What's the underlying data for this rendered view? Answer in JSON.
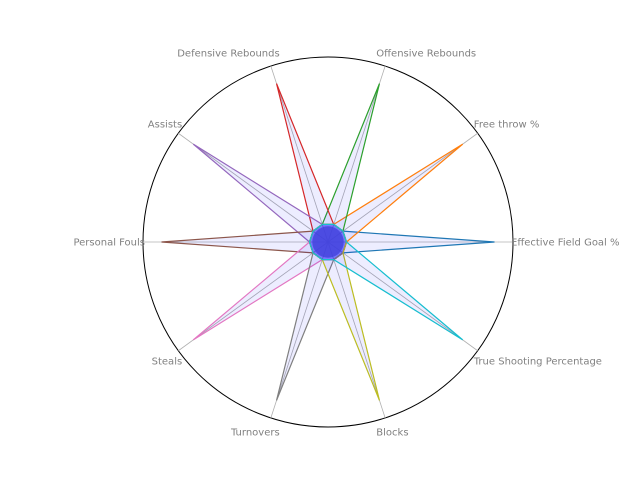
{
  "chart_data": {
    "type": "radar",
    "axes": [
      "Effective Field Goal %",
      "Free throw %",
      "Offensive Rebounds",
      "Defensive Rebounds",
      "Assists",
      "Personal Fouls",
      "Steals",
      "Turnovers",
      "Blocks",
      "True Shooting Percentage"
    ],
    "rlim": [
      0,
      1
    ],
    "grid": false,
    "outer_circle": true,
    "center_fill": "#4444dd",
    "series": [
      {
        "color": "#1f77b4",
        "values": [
          0.9,
          0.1,
          0.1,
          0.1,
          0.1,
          0.1,
          0.1,
          0.1,
          0.1,
          0.1
        ]
      },
      {
        "color": "#ff7f0e",
        "values": [
          0.1,
          0.9,
          0.1,
          0.1,
          0.1,
          0.1,
          0.1,
          0.1,
          0.1,
          0.1
        ]
      },
      {
        "color": "#2ca02c",
        "values": [
          0.1,
          0.1,
          0.9,
          0.1,
          0.1,
          0.1,
          0.1,
          0.1,
          0.1,
          0.1
        ]
      },
      {
        "color": "#d62728",
        "values": [
          0.1,
          0.1,
          0.1,
          0.9,
          0.1,
          0.1,
          0.1,
          0.1,
          0.1,
          0.1
        ]
      },
      {
        "color": "#9467bd",
        "values": [
          0.1,
          0.1,
          0.1,
          0.1,
          0.9,
          0.1,
          0.1,
          0.1,
          0.1,
          0.1
        ]
      },
      {
        "color": "#8c564b",
        "values": [
          0.1,
          0.1,
          0.1,
          0.1,
          0.1,
          0.9,
          0.1,
          0.1,
          0.1,
          0.1
        ]
      },
      {
        "color": "#e377c2",
        "values": [
          0.1,
          0.1,
          0.1,
          0.1,
          0.1,
          0.1,
          0.9,
          0.1,
          0.1,
          0.1
        ]
      },
      {
        "color": "#7f7f7f",
        "values": [
          0.1,
          0.1,
          0.1,
          0.1,
          0.1,
          0.1,
          0.1,
          0.9,
          0.1,
          0.1
        ]
      },
      {
        "color": "#bcbd22",
        "values": [
          0.1,
          0.1,
          0.1,
          0.1,
          0.1,
          0.1,
          0.1,
          0.1,
          0.9,
          0.1
        ]
      },
      {
        "color": "#17becf",
        "values": [
          0.1,
          0.1,
          0.1,
          0.1,
          0.1,
          0.1,
          0.1,
          0.1,
          0.1,
          0.9
        ]
      }
    ]
  }
}
